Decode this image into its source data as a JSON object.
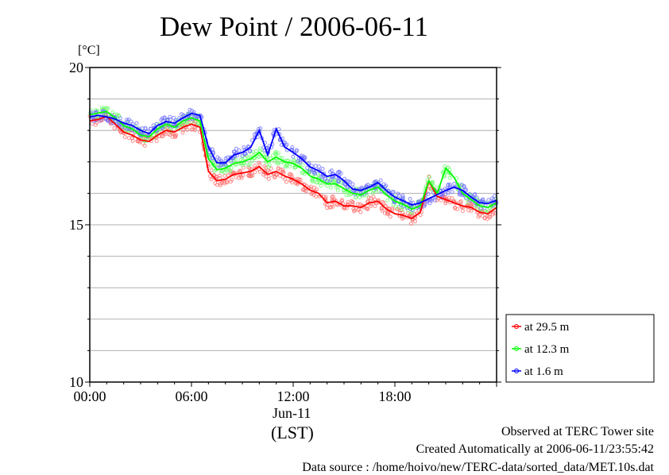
{
  "chart_data": {
    "type": "line",
    "title": "Dew Point / 2006-06-11",
    "ylabel": "[°C]",
    "xlabel": "(LST)",
    "x_date_label": "Jun-11",
    "ylim": [
      10,
      20
    ],
    "xlim_hours": [
      0,
      24
    ],
    "y_ticks": [
      "10",
      "15",
      "20"
    ],
    "y_grid_step": 1,
    "x_ticks": [
      {
        "hour": 0,
        "label": "00:00"
      },
      {
        "hour": 6,
        "label": "06:00"
      },
      {
        "hour": 12,
        "label": "12:00"
      },
      {
        "hour": 18,
        "label": "18:00"
      }
    ],
    "grid": true,
    "legend_position": "bottom-right-outside",
    "x_step_hours": 0.5,
    "series": [
      {
        "name": "at 29.5 m",
        "color": "#ff0000",
        "dot_color": "#ff7070",
        "values": [
          18.3,
          18.35,
          18.45,
          18.2,
          17.95,
          17.85,
          17.7,
          17.65,
          17.85,
          18.0,
          17.95,
          18.1,
          18.2,
          18.1,
          16.7,
          16.4,
          16.45,
          16.6,
          16.65,
          16.7,
          16.85,
          16.6,
          16.7,
          16.55,
          16.45,
          16.3,
          16.1,
          16.0,
          15.7,
          15.75,
          15.6,
          15.6,
          15.55,
          15.7,
          15.75,
          15.5,
          15.35,
          15.3,
          15.2,
          15.4,
          16.4,
          15.9,
          15.8,
          15.7,
          15.6,
          15.55,
          15.4,
          15.35,
          15.55
        ]
      },
      {
        "name": "at 12.3 m",
        "color": "#00ff00",
        "dot_color": "#70ff70",
        "values": [
          18.5,
          18.55,
          18.6,
          18.4,
          18.15,
          18.05,
          17.85,
          17.8,
          18.05,
          18.2,
          18.1,
          18.3,
          18.4,
          18.3,
          17.1,
          16.75,
          16.8,
          16.95,
          17.0,
          17.1,
          17.3,
          17.0,
          17.15,
          17.0,
          16.95,
          16.8,
          16.55,
          16.45,
          16.3,
          16.3,
          16.15,
          16.0,
          15.95,
          16.1,
          16.2,
          15.95,
          15.75,
          15.65,
          15.5,
          15.6,
          16.4,
          16.0,
          16.8,
          16.5,
          16.0,
          15.8,
          15.6,
          15.55,
          15.7
        ]
      },
      {
        "name": "at 1.6 m",
        "color": "#0000ff",
        "dot_color": "#7070ff",
        "values": [
          18.43,
          18.48,
          18.43,
          18.36,
          18.23,
          18.16,
          18.0,
          17.9,
          18.16,
          18.28,
          18.23,
          18.4,
          18.54,
          18.48,
          17.47,
          16.97,
          16.97,
          17.22,
          17.3,
          17.47,
          18.0,
          17.22,
          18.05,
          17.47,
          17.3,
          17.1,
          16.84,
          16.72,
          16.54,
          16.6,
          16.4,
          16.14,
          16.09,
          16.2,
          16.34,
          16.09,
          15.88,
          15.76,
          15.63,
          15.7,
          15.83,
          15.96,
          16.09,
          16.2,
          16.09,
          15.88,
          15.7,
          15.68,
          15.78
        ]
      }
    ]
  },
  "footer": {
    "observed": "Observed at TERC Tower site",
    "created": "Created Automatically at 2006-06-11/23:55:42",
    "source": "Data source : /home/hoivo/new/TERC-data/sorted_data/MET.10s.dat"
  }
}
